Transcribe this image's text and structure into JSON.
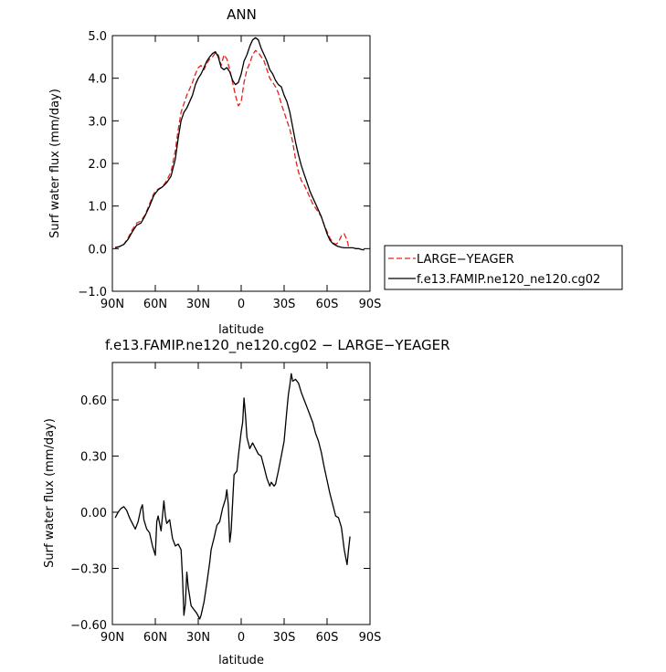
{
  "chart_data": [
    {
      "type": "line",
      "title": "ANN",
      "xlabel": "latitude",
      "ylabel": "Surf water flux (mm/day)",
      "xlim": [
        90,
        -90
      ],
      "ylim": [
        -1.0,
        5.0
      ],
      "x_ticks": [
        90,
        60,
        30,
        0,
        -30,
        -60,
        -90
      ],
      "x_tick_labels": [
        "90N",
        "60N",
        "30N",
        "0",
        "30S",
        "60S",
        "90S"
      ],
      "y_ticks": [
        -1.0,
        0.0,
        1.0,
        2.0,
        3.0,
        4.0,
        5.0
      ],
      "y_tick_labels": [
        "−1.0",
        "0.0",
        "1.0",
        "2.0",
        "3.0",
        "4.0",
        "5.0"
      ],
      "grid": false,
      "legend": "right",
      "series": [
        {
          "name": "LARGE−YEAGER",
          "color": "#e0241e",
          "dash": "dashed",
          "points": [
            [
              88,
              0.03
            ],
            [
              85,
              0.05
            ],
            [
              82,
              0.1
            ],
            [
              79,
              0.25
            ],
            [
              76,
              0.45
            ],
            [
              73,
              0.6
            ],
            [
              70,
              0.65
            ],
            [
              67,
              0.8
            ],
            [
              64,
              1.05
            ],
            [
              61,
              1.3
            ],
            [
              58,
              1.4
            ],
            [
              55,
              1.45
            ],
            [
              52,
              1.6
            ],
            [
              49,
              1.8
            ],
            [
              46,
              2.3
            ],
            [
              44,
              2.8
            ],
            [
              42,
              3.2
            ],
            [
              40,
              3.4
            ],
            [
              38,
              3.6
            ],
            [
              36,
              3.75
            ],
            [
              34,
              3.9
            ],
            [
              32,
              4.1
            ],
            [
              30,
              4.25
            ],
            [
              28,
              4.3
            ],
            [
              26,
              4.2
            ],
            [
              24,
              4.35
            ],
            [
              22,
              4.45
            ],
            [
              20,
              4.5
            ],
            [
              18,
              4.6
            ],
            [
              16,
              4.55
            ],
            [
              14,
              4.3
            ],
            [
              12,
              4.55
            ],
            [
              10,
              4.45
            ],
            [
              8,
              4.2
            ],
            [
              6,
              3.9
            ],
            [
              4,
              3.6
            ],
            [
              2,
              3.35
            ],
            [
              0,
              3.45
            ],
            [
              -2,
              3.9
            ],
            [
              -4,
              4.2
            ],
            [
              -6,
              4.35
            ],
            [
              -8,
              4.55
            ],
            [
              -10,
              4.65
            ],
            [
              -12,
              4.6
            ],
            [
              -14,
              4.5
            ],
            [
              -16,
              4.4
            ],
            [
              -18,
              4.2
            ],
            [
              -20,
              4.0
            ],
            [
              -22,
              3.9
            ],
            [
              -24,
              3.8
            ],
            [
              -26,
              3.65
            ],
            [
              -28,
              3.4
            ],
            [
              -30,
              3.2
            ],
            [
              -32,
              3.0
            ],
            [
              -34,
              2.8
            ],
            [
              -36,
              2.5
            ],
            [
              -38,
              2.1
            ],
            [
              -40,
              1.8
            ],
            [
              -42,
              1.6
            ],
            [
              -44,
              1.5
            ],
            [
              -46,
              1.35
            ],
            [
              -48,
              1.2
            ],
            [
              -50,
              1.05
            ],
            [
              -52,
              0.95
            ],
            [
              -54,
              0.85
            ],
            [
              -56,
              0.75
            ],
            [
              -58,
              0.55
            ],
            [
              -60,
              0.4
            ],
            [
              -62,
              0.25
            ],
            [
              -64,
              0.15
            ],
            [
              -66,
              0.1
            ],
            [
              -68,
              0.15
            ],
            [
              -70,
              0.3
            ],
            [
              -72,
              0.35
            ],
            [
              -74,
              0.2
            ],
            [
              -75,
              0.05
            ]
          ]
        },
        {
          "name": "f.e13.FAMIP.ne120_ne120.cg02",
          "color": "#000000",
          "dash": "solid",
          "points": [
            [
              88,
              0.02
            ],
            [
              85,
              0.05
            ],
            [
              82,
              0.1
            ],
            [
              79,
              0.22
            ],
            [
              76,
              0.4
            ],
            [
              73,
              0.55
            ],
            [
              70,
              0.6
            ],
            [
              67,
              0.78
            ],
            [
              64,
              1.0
            ],
            [
              61,
              1.25
            ],
            [
              58,
              1.38
            ],
            [
              55,
              1.45
            ],
            [
              52,
              1.55
            ],
            [
              49,
              1.7
            ],
            [
              46,
              2.1
            ],
            [
              44,
              2.6
            ],
            [
              42,
              3.0
            ],
            [
              40,
              3.2
            ],
            [
              38,
              3.3
            ],
            [
              36,
              3.45
            ],
            [
              34,
              3.6
            ],
            [
              32,
              3.85
            ],
            [
              30,
              4.0
            ],
            [
              28,
              4.1
            ],
            [
              26,
              4.25
            ],
            [
              24,
              4.4
            ],
            [
              22,
              4.5
            ],
            [
              20,
              4.58
            ],
            [
              18,
              4.62
            ],
            [
              16,
              4.5
            ],
            [
              14,
              4.25
            ],
            [
              12,
              4.2
            ],
            [
              10,
              4.25
            ],
            [
              8,
              4.15
            ],
            [
              6,
              3.95
            ],
            [
              4,
              3.85
            ],
            [
              2,
              3.9
            ],
            [
              0,
              4.1
            ],
            [
              -2,
              4.4
            ],
            [
              -4,
              4.55
            ],
            [
              -6,
              4.75
            ],
            [
              -8,
              4.9
            ],
            [
              -10,
              4.95
            ],
            [
              -12,
              4.9
            ],
            [
              -14,
              4.7
            ],
            [
              -16,
              4.55
            ],
            [
              -18,
              4.4
            ],
            [
              -20,
              4.2
            ],
            [
              -22,
              4.1
            ],
            [
              -24,
              3.95
            ],
            [
              -26,
              3.85
            ],
            [
              -28,
              3.8
            ],
            [
              -30,
              3.6
            ],
            [
              -32,
              3.45
            ],
            [
              -34,
              3.2
            ],
            [
              -36,
              2.85
            ],
            [
              -38,
              2.5
            ],
            [
              -40,
              2.2
            ],
            [
              -42,
              1.95
            ],
            [
              -44,
              1.75
            ],
            [
              -46,
              1.55
            ],
            [
              -48,
              1.35
            ],
            [
              -50,
              1.2
            ],
            [
              -52,
              1.05
            ],
            [
              -54,
              0.9
            ],
            [
              -56,
              0.75
            ],
            [
              -58,
              0.55
            ],
            [
              -60,
              0.35
            ],
            [
              -62,
              0.2
            ],
            [
              -64,
              0.12
            ],
            [
              -66,
              0.08
            ],
            [
              -68,
              0.05
            ],
            [
              -70,
              0.03
            ],
            [
              -72,
              0.02
            ],
            [
              -75,
              0.02
            ],
            [
              -78,
              0.02
            ],
            [
              -80,
              0.0
            ],
            [
              -82,
              0.0
            ],
            [
              -84,
              -0.02
            ],
            [
              -86,
              -0.03
            ]
          ]
        }
      ]
    },
    {
      "type": "line",
      "title": "f.e13.FAMIP.ne120_ne120.cg02 − LARGE−YEAGER",
      "xlabel": "latitude",
      "ylabel": "Surf water flux (mm/day)",
      "xlim": [
        90,
        -90
      ],
      "ylim": [
        -0.6,
        0.8
      ],
      "x_ticks": [
        90,
        60,
        30,
        0,
        -30,
        -60,
        -90
      ],
      "x_tick_labels": [
        "90N",
        "60N",
        "30N",
        "0",
        "30S",
        "60S",
        "90S"
      ],
      "y_ticks": [
        -0.6,
        -0.3,
        0.0,
        0.3,
        0.6
      ],
      "y_tick_labels": [
        "−0.60",
        "−0.30",
        "0.00",
        "0.30",
        "0.60"
      ],
      "grid": false,
      "series": [
        {
          "name": "",
          "color": "#000000",
          "dash": "solid",
          "points": [
            [
              88,
              -0.03
            ],
            [
              86,
              0.0
            ],
            [
              84,
              0.02
            ],
            [
              82,
              0.03
            ],
            [
              80,
              0.01
            ],
            [
              78,
              -0.03
            ],
            [
              76,
              -0.06
            ],
            [
              74,
              -0.09
            ],
            [
              72,
              -0.05
            ],
            [
              70,
              0.02
            ],
            [
              69,
              0.04
            ],
            [
              68,
              -0.04
            ],
            [
              66,
              -0.09
            ],
            [
              64,
              -0.11
            ],
            [
              62,
              -0.18
            ],
            [
              60,
              -0.23
            ],
            [
              59,
              -0.05
            ],
            [
              58,
              -0.02
            ],
            [
              56,
              -0.1
            ],
            [
              54,
              0.06
            ],
            [
              53,
              -0.02
            ],
            [
              52,
              -0.06
            ],
            [
              50,
              -0.04
            ],
            [
              48,
              -0.14
            ],
            [
              46,
              -0.18
            ],
            [
              44,
              -0.17
            ],
            [
              42,
              -0.2
            ],
            [
              41,
              -0.35
            ],
            [
              40,
              -0.55
            ],
            [
              39,
              -0.49
            ],
            [
              38,
              -0.32
            ],
            [
              37,
              -0.4
            ],
            [
              35,
              -0.5
            ],
            [
              33,
              -0.52
            ],
            [
              31,
              -0.54
            ],
            [
              29,
              -0.57
            ],
            [
              28,
              -0.55
            ],
            [
              26,
              -0.48
            ],
            [
              24,
              -0.38
            ],
            [
              22,
              -0.27
            ],
            [
              21,
              -0.2
            ],
            [
              19,
              -0.14
            ],
            [
              17,
              -0.07
            ],
            [
              15,
              -0.05
            ],
            [
              13,
              0.02
            ],
            [
              11,
              0.07
            ],
            [
              10,
              0.12
            ],
            [
              9,
              0.04
            ],
            [
              8,
              -0.16
            ],
            [
              7,
              -0.1
            ],
            [
              6,
              0.05
            ],
            [
              5,
              0.2
            ],
            [
              3,
              0.22
            ],
            [
              2,
              0.3
            ],
            [
              0,
              0.43
            ],
            [
              -1,
              0.48
            ],
            [
              -2,
              0.61
            ],
            [
              -3,
              0.52
            ],
            [
              -4,
              0.4
            ],
            [
              -6,
              0.34
            ],
            [
              -8,
              0.37
            ],
            [
              -10,
              0.34
            ],
            [
              -12,
              0.31
            ],
            [
              -14,
              0.3
            ],
            [
              -16,
              0.24
            ],
            [
              -18,
              0.18
            ],
            [
              -20,
              0.14
            ],
            [
              -21,
              0.16
            ],
            [
              -23,
              0.14
            ],
            [
              -24,
              0.15
            ],
            [
              -26,
              0.22
            ],
            [
              -28,
              0.3
            ],
            [
              -30,
              0.38
            ],
            [
              -32,
              0.55
            ],
            [
              -33,
              0.63
            ],
            [
              -34,
              0.68
            ],
            [
              -35,
              0.74
            ],
            [
              -36,
              0.7
            ],
            [
              -38,
              0.71
            ],
            [
              -40,
              0.69
            ],
            [
              -42,
              0.64
            ],
            [
              -44,
              0.6
            ],
            [
              -46,
              0.56
            ],
            [
              -48,
              0.52
            ],
            [
              -50,
              0.48
            ],
            [
              -52,
              0.42
            ],
            [
              -54,
              0.38
            ],
            [
              -56,
              0.32
            ],
            [
              -58,
              0.24
            ],
            [
              -60,
              0.17
            ],
            [
              -62,
              0.1
            ],
            [
              -64,
              0.04
            ],
            [
              -66,
              -0.02
            ],
            [
              -68,
              -0.03
            ],
            [
              -70,
              -0.08
            ],
            [
              -72,
              -0.2
            ],
            [
              -74,
              -0.28
            ],
            [
              -75,
              -0.2
            ],
            [
              -76,
              -0.13
            ]
          ]
        }
      ]
    }
  ]
}
